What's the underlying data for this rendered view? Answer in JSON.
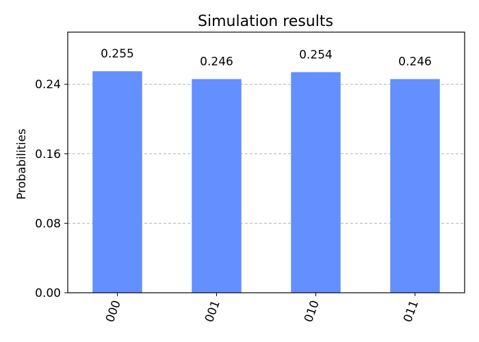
{
  "chart_data": {
    "type": "bar",
    "title": "Simulation results",
    "xlabel": "",
    "ylabel": "Probabilities",
    "categories": [
      "000",
      "001",
      "010",
      "011"
    ],
    "values": [
      0.255,
      0.246,
      0.254,
      0.246
    ],
    "data_labels": [
      "0.255",
      "0.246",
      "0.254",
      "0.246"
    ],
    "yticks": [
      0.0,
      0.08,
      0.16,
      0.24
    ],
    "ytick_labels": [
      "0.00",
      "0.08",
      "0.16",
      "0.24"
    ],
    "ylim": [
      0,
      0.3
    ],
    "grid": "y",
    "bar_color": "#648fff",
    "xtick_rotation": "70deg"
  }
}
